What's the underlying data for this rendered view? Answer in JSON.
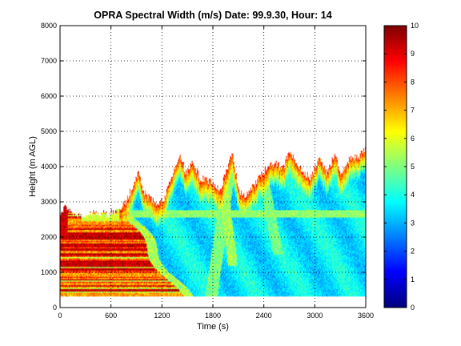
{
  "chart_data": {
    "type": "heatmap",
    "title": "OPRA Spectral Width (m/s)  Date: 99.9.30, Hour: 14",
    "xlabel": "Time (s)",
    "ylabel": "Height (m AGL)",
    "xlim": [
      0,
      3600
    ],
    "ylim": [
      0,
      8000
    ],
    "x_ticks": [
      0,
      600,
      1200,
      1800,
      2400,
      3000,
      3600
    ],
    "x_tick_labels": [
      "0",
      "600",
      "1200",
      "1800",
      "2400",
      "3000",
      "3600"
    ],
    "y_ticks": [
      0,
      1000,
      2000,
      3000,
      4000,
      5000,
      6000,
      7000,
      8000
    ],
    "y_tick_labels": [
      "0",
      "1000",
      "2000",
      "3000",
      "4000",
      "5000",
      "6000",
      "7000",
      "8000"
    ],
    "grid": true,
    "colormap": "jet",
    "colorbar": {
      "range": [
        0,
        10
      ],
      "ticks": [
        0,
        1,
        2,
        3,
        4,
        5,
        6,
        7,
        8,
        9,
        10
      ],
      "tick_labels": [
        "0",
        "1",
        "2",
        "3",
        "4",
        "5",
        "6",
        "7",
        "8",
        "9",
        "10"
      ]
    },
    "data_region": {
      "time_range": [
        0,
        3600
      ],
      "min_height": 300,
      "max_echo_top": 4600
    },
    "value_regimes": [
      {
        "time_range": [
          0,
          600
        ],
        "height_range": [
          300,
          2600
        ],
        "spectral_width_range": [
          6,
          10
        ]
      },
      {
        "time_range": [
          600,
          1400
        ],
        "height_range": [
          300,
          2600
        ],
        "spectral_width_range": [
          5,
          9
        ]
      },
      {
        "time_range": [
          1400,
          3600
        ],
        "height_range": [
          300,
          3000
        ],
        "spectral_width_range": [
          2.5,
          4.5
        ]
      },
      {
        "time_range": [
          1400,
          3600
        ],
        "height_range": [
          3000,
          4500
        ],
        "spectral_width_range": [
          7,
          10
        ]
      }
    ]
  }
}
